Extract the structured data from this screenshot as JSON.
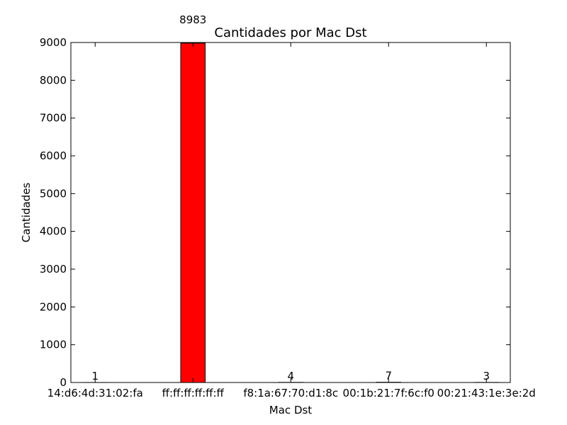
{
  "chart_data": {
    "type": "bar",
    "title": "Cantidades por Mac Dst",
    "xlabel": "Mac Dst",
    "ylabel": "Cantidades",
    "categories": [
      "14:d6:4d:31:02:fa",
      "ff:ff:ff:ff:ff:ff",
      "f8:1a:67:70:d1:8c",
      "00:1b:21:7f:6c:f0",
      "00:21:43:1e:3e:2d"
    ],
    "values": [
      1,
      8983,
      4,
      7,
      3
    ],
    "data_labels": [
      "1",
      "8983",
      "4",
      "7",
      "3"
    ],
    "ylim": [
      0,
      9000
    ],
    "yticks": [
      0,
      1000,
      2000,
      3000,
      4000,
      5000,
      6000,
      7000,
      8000,
      9000
    ],
    "grid": false,
    "legend": "none",
    "bar_color": "#ff0000",
    "edge_color": "#000000"
  }
}
